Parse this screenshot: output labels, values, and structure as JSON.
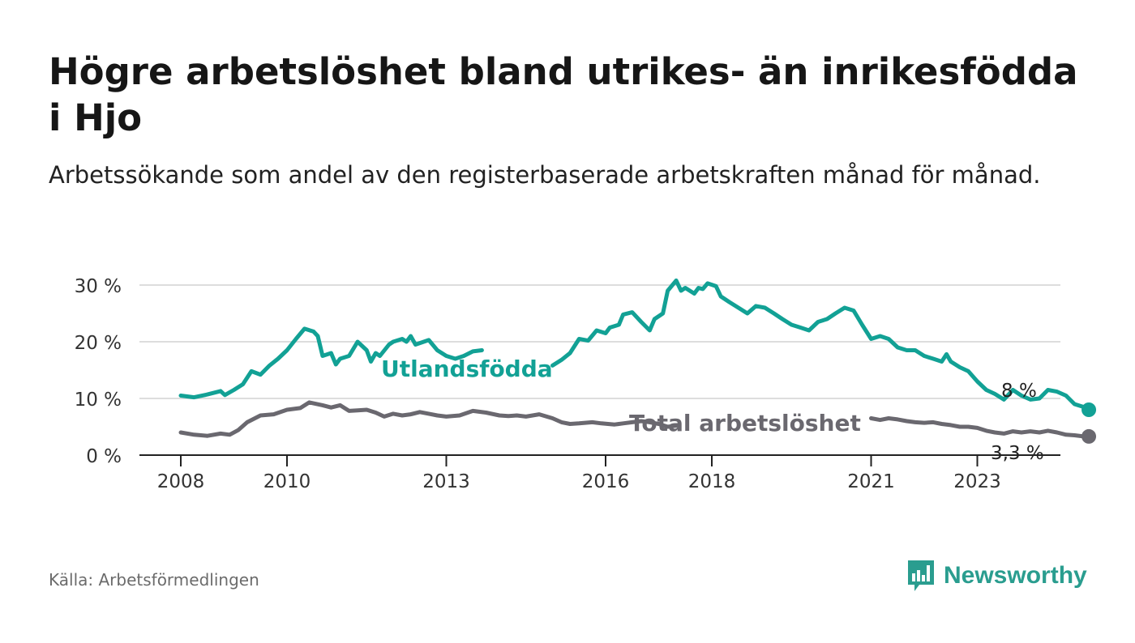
{
  "title": "Högre arbetslöshet bland utrikes- än inrikesfödda i Hjo",
  "subtitle": "Arbetssökande som andel av den registerbaserade arbetskraften månad för månad.",
  "source": "Källa: Arbetsförmedlingen",
  "brand": "Newsworthy",
  "colors": {
    "foreign": "#12a195",
    "total": "#6a686f",
    "grid": "#dddddd",
    "axis": "#222222"
  },
  "chart_data": {
    "type": "line",
    "title": "Högre arbetslöshet bland utrikes- än inrikesfödda i Hjo",
    "xlabel": "",
    "ylabel": "",
    "xlim": [
      2008.0,
      2024.25
    ],
    "ylim": [
      0,
      30
    ],
    "y_ticks": [
      0,
      10,
      20,
      30
    ],
    "y_tick_labels": [
      "0 %",
      "10 %",
      "20 %",
      "30 %"
    ],
    "x_ticks": [
      2008,
      2010,
      2013,
      2016,
      2018,
      2021,
      2023
    ],
    "x_tick_labels": [
      "2008",
      "2010",
      "2013",
      "2016",
      "2018",
      "2021",
      "2023"
    ],
    "grid": true,
    "series": [
      {
        "name": "Utlandsfödda",
        "end_label": "8 %",
        "points": [
          [
            2008.0,
            10.5
          ],
          [
            2008.25,
            10.2
          ],
          [
            2008.5,
            10.7
          ],
          [
            2008.75,
            11.3
          ],
          [
            2008.83,
            10.6
          ],
          [
            2009.0,
            11.5
          ],
          [
            2009.17,
            12.5
          ],
          [
            2009.33,
            14.8
          ],
          [
            2009.5,
            14.2
          ],
          [
            2009.67,
            15.8
          ],
          [
            2009.83,
            17.0
          ],
          [
            2010.0,
            18.5
          ],
          [
            2010.17,
            20.5
          ],
          [
            2010.33,
            22.3
          ],
          [
            2010.5,
            21.8
          ],
          [
            2010.58,
            21.0
          ],
          [
            2010.67,
            17.5
          ],
          [
            2010.83,
            18.0
          ],
          [
            2010.92,
            16.0
          ],
          [
            2011.0,
            17.0
          ],
          [
            2011.17,
            17.5
          ],
          [
            2011.33,
            20.0
          ],
          [
            2011.5,
            18.5
          ],
          [
            2011.58,
            16.5
          ],
          [
            2011.67,
            18.0
          ],
          [
            2011.75,
            17.5
          ],
          [
            2011.92,
            19.5
          ],
          [
            2012.0,
            20.0
          ],
          [
            2012.17,
            20.5
          ],
          [
            2012.25,
            20.0
          ],
          [
            2012.33,
            21.0
          ],
          [
            2012.42,
            19.5
          ],
          [
            2012.67,
            20.3
          ],
          [
            2012.83,
            18.5
          ],
          [
            2013.0,
            17.5
          ],
          [
            2013.17,
            17.0
          ],
          [
            2013.33,
            17.5
          ],
          [
            2013.5,
            18.3
          ],
          [
            2013.67,
            18.5
          ],
          [
            2015.0,
            15.8
          ],
          [
            2015.17,
            16.8
          ],
          [
            2015.33,
            18.0
          ],
          [
            2015.5,
            20.5
          ],
          [
            2015.67,
            20.2
          ],
          [
            2015.83,
            22.0
          ],
          [
            2016.0,
            21.5
          ],
          [
            2016.08,
            22.5
          ],
          [
            2016.25,
            23.0
          ],
          [
            2016.33,
            24.8
          ],
          [
            2016.5,
            25.2
          ],
          [
            2016.67,
            23.5
          ],
          [
            2016.83,
            22.0
          ],
          [
            2016.92,
            24.0
          ],
          [
            2017.08,
            25.0
          ],
          [
            2017.17,
            29.0
          ],
          [
            2017.33,
            30.8
          ],
          [
            2017.42,
            29.0
          ],
          [
            2017.5,
            29.5
          ],
          [
            2017.67,
            28.5
          ],
          [
            2017.75,
            29.5
          ],
          [
            2017.83,
            29.3
          ],
          [
            2017.92,
            30.3
          ],
          [
            2018.08,
            29.8
          ],
          [
            2018.17,
            28.0
          ],
          [
            2018.33,
            27.0
          ],
          [
            2018.5,
            26.0
          ],
          [
            2018.67,
            25.0
          ],
          [
            2018.83,
            26.3
          ],
          [
            2019.0,
            26.0
          ],
          [
            2019.17,
            25.0
          ],
          [
            2019.33,
            24.0
          ],
          [
            2019.5,
            23.0
          ],
          [
            2019.67,
            22.5
          ],
          [
            2019.83,
            22.0
          ],
          [
            2020.0,
            23.5
          ],
          [
            2020.17,
            24.0
          ],
          [
            2020.33,
            25.0
          ],
          [
            2020.5,
            26.0
          ],
          [
            2020.67,
            25.5
          ],
          [
            2020.83,
            23.0
          ],
          [
            2021.0,
            20.5
          ],
          [
            2021.17,
            21.0
          ],
          [
            2021.33,
            20.5
          ],
          [
            2021.5,
            19.0
          ],
          [
            2021.67,
            18.5
          ],
          [
            2021.83,
            18.5
          ],
          [
            2022.0,
            17.5
          ],
          [
            2022.17,
            17.0
          ],
          [
            2022.33,
            16.5
          ],
          [
            2022.42,
            17.8
          ],
          [
            2022.5,
            16.5
          ],
          [
            2022.67,
            15.5
          ],
          [
            2022.83,
            14.8
          ],
          [
            2023.0,
            13.0
          ],
          [
            2023.17,
            11.5
          ],
          [
            2023.33,
            10.8
          ],
          [
            2023.5,
            9.8
          ],
          [
            2023.67,
            11.5
          ],
          [
            2023.83,
            10.5
          ],
          [
            2024.0,
            9.8
          ],
          [
            2024.17,
            10.0
          ],
          [
            2024.33,
            11.5
          ],
          [
            2024.5,
            11.2
          ],
          [
            2024.67,
            10.5
          ],
          [
            2024.83,
            9.0
          ],
          [
            2025.0,
            8.5
          ],
          [
            2025.1,
            8.0
          ]
        ]
      },
      {
        "name": "Total arbetslöshet",
        "end_label": "3,3 %",
        "points": [
          [
            2008.0,
            4.0
          ],
          [
            2008.25,
            3.6
          ],
          [
            2008.5,
            3.4
          ],
          [
            2008.75,
            3.8
          ],
          [
            2008.92,
            3.6
          ],
          [
            2009.08,
            4.4
          ],
          [
            2009.25,
            5.8
          ],
          [
            2009.5,
            7.0
          ],
          [
            2009.75,
            7.2
          ],
          [
            2010.0,
            8.0
          ],
          [
            2010.25,
            8.3
          ],
          [
            2010.42,
            9.3
          ],
          [
            2010.67,
            8.8
          ],
          [
            2010.83,
            8.4
          ],
          [
            2011.0,
            8.8
          ],
          [
            2011.17,
            7.8
          ],
          [
            2011.33,
            7.9
          ],
          [
            2011.5,
            8.0
          ],
          [
            2011.67,
            7.5
          ],
          [
            2011.83,
            6.8
          ],
          [
            2012.0,
            7.3
          ],
          [
            2012.17,
            7.0
          ],
          [
            2012.33,
            7.2
          ],
          [
            2012.5,
            7.6
          ],
          [
            2012.67,
            7.3
          ],
          [
            2012.83,
            7.0
          ],
          [
            2013.0,
            6.8
          ],
          [
            2013.25,
            7.0
          ],
          [
            2013.5,
            7.8
          ],
          [
            2013.75,
            7.5
          ],
          [
            2014.0,
            7.0
          ],
          [
            2014.17,
            6.9
          ],
          [
            2014.33,
            7.0
          ],
          [
            2014.5,
            6.8
          ],
          [
            2014.75,
            7.2
          ],
          [
            2015.0,
            6.5
          ],
          [
            2015.17,
            5.8
          ],
          [
            2015.33,
            5.5
          ],
          [
            2015.5,
            5.6
          ],
          [
            2015.75,
            5.8
          ],
          [
            2015.92,
            5.6
          ],
          [
            2016.17,
            5.4
          ],
          [
            2016.33,
            5.6
          ],
          [
            2016.5,
            5.8
          ],
          [
            2016.67,
            6.0
          ],
          [
            2016.83,
            5.8
          ],
          [
            2017.0,
            5.5
          ],
          [
            2017.17,
            5.0
          ],
          [
            2017.33,
            5.2
          ],
          [
            2021.0,
            6.5
          ],
          [
            2021.17,
            6.2
          ],
          [
            2021.33,
            6.5
          ],
          [
            2021.5,
            6.3
          ],
          [
            2021.67,
            6.0
          ],
          [
            2021.83,
            5.8
          ],
          [
            2022.0,
            5.7
          ],
          [
            2022.17,
            5.8
          ],
          [
            2022.33,
            5.5
          ],
          [
            2022.5,
            5.3
          ],
          [
            2022.67,
            5.0
          ],
          [
            2022.83,
            5.0
          ],
          [
            2023.0,
            4.8
          ],
          [
            2023.17,
            4.3
          ],
          [
            2023.33,
            4.0
          ],
          [
            2023.5,
            3.8
          ],
          [
            2023.67,
            4.2
          ],
          [
            2023.83,
            4.0
          ],
          [
            2024.0,
            4.2
          ],
          [
            2024.17,
            4.0
          ],
          [
            2024.33,
            4.3
          ],
          [
            2024.5,
            4.0
          ],
          [
            2024.67,
            3.6
          ],
          [
            2024.83,
            3.5
          ],
          [
            2025.0,
            3.3
          ],
          [
            2025.1,
            3.3
          ]
        ]
      }
    ]
  }
}
